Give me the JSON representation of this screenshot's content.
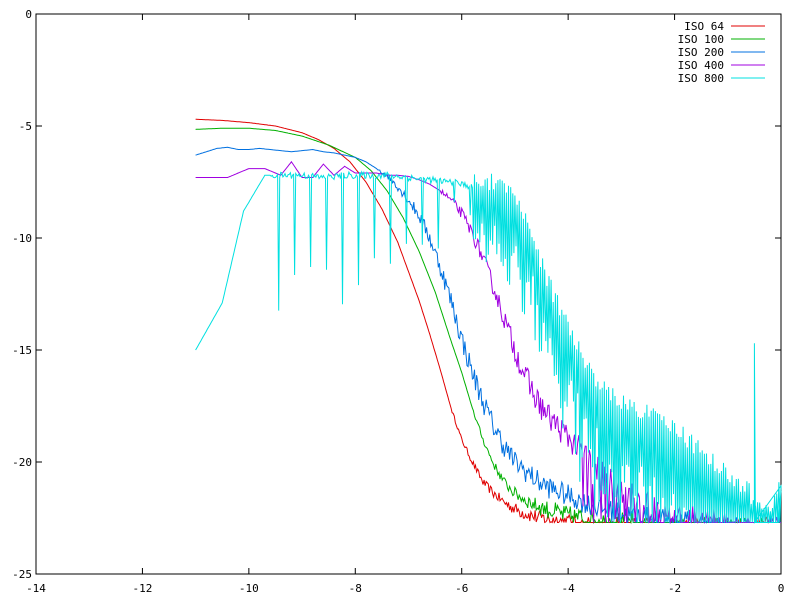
{
  "chart_data": {
    "type": "line",
    "title": "",
    "xlabel": "",
    "ylabel": "",
    "xlim": [
      -14,
      0
    ],
    "ylim": [
      -25,
      0
    ],
    "x_ticks": [
      -14,
      -12,
      -10,
      -8,
      -6,
      -4,
      -2,
      0
    ],
    "y_ticks": [
      0,
      -5,
      -10,
      -15,
      -20,
      -25
    ],
    "x_tick_labels": [
      "-14",
      "-12",
      "-10",
      "-8",
      "-6",
      "-4",
      "-2",
      "0"
    ],
    "y_tick_labels": [
      "0",
      "-5",
      "-10",
      "-15",
      "-20",
      "-25"
    ],
    "grid": false,
    "legend_position": "top-right",
    "floor_value": -22.7,
    "series": [
      {
        "name": "ISO 64",
        "color": "#e00000",
        "style": "smooth",
        "x": [
          -11,
          -10.5,
          -10,
          -9.5,
          -9,
          -8.7,
          -8.4,
          -8.1,
          -7.8,
          -7.5,
          -7.2,
          -7.0,
          -6.8,
          -6.6,
          -6.4,
          -6.2,
          -6.0,
          -5.8,
          -5.6,
          -5.4,
          -5.2,
          -5.0,
          -4.8,
          -4.6,
          -4.4,
          -4.2,
          -4.0,
          -3.8
        ],
        "y": [
          -4.7,
          -4.75,
          -4.85,
          -5.0,
          -5.3,
          -5.6,
          -6.0,
          -6.6,
          -7.5,
          -8.7,
          -10.2,
          -11.5,
          -12.8,
          -14.3,
          -15.9,
          -17.6,
          -19.0,
          -20.0,
          -20.9,
          -21.4,
          -21.8,
          -22.1,
          -22.3,
          -22.45,
          -22.55,
          -22.6,
          -22.65,
          -22.7
        ],
        "noise": 0.35,
        "noise_from": -6.2
      },
      {
        "name": "ISO 100",
        "color": "#00b000",
        "style": "smooth",
        "x": [
          -11,
          -10.5,
          -10,
          -9.5,
          -9,
          -8.5,
          -8.0,
          -7.7,
          -7.4,
          -7.1,
          -6.8,
          -6.5,
          -6.2,
          -6.0,
          -5.8,
          -5.6,
          -5.4,
          -5.2,
          -5.0,
          -4.8,
          -4.6,
          -4.3,
          -4.0,
          -3.6,
          -3.2,
          -2.8
        ],
        "y": [
          -5.15,
          -5.1,
          -5.1,
          -5.2,
          -5.45,
          -5.85,
          -6.4,
          -7.0,
          -7.9,
          -9.1,
          -10.6,
          -12.4,
          -14.6,
          -16.0,
          -17.6,
          -19.0,
          -20.1,
          -20.9,
          -21.4,
          -21.7,
          -21.95,
          -22.2,
          -22.4,
          -22.55,
          -22.65,
          -22.7
        ],
        "noise": 0.45,
        "noise_from": -5.8
      },
      {
        "name": "ISO 200",
        "color": "#0070e0",
        "style": "jagged",
        "x": [
          -11,
          -10.8,
          -10.6,
          -10.4,
          -10.2,
          -10.0,
          -9.8,
          -9.6,
          -9.4,
          -9.2,
          -9.0,
          -8.8,
          -8.6,
          -8.4,
          -8.2,
          -8.0,
          -7.8,
          -7.6,
          -7.4,
          -7.2,
          -7.0,
          -6.8,
          -6.6,
          -6.4,
          -6.2,
          -6.0,
          -5.8,
          -5.6,
          -5.4,
          -5.2,
          -5.0,
          -4.8,
          -4.6,
          -4.4,
          -4.2,
          -4.0,
          -3.8,
          -3.6,
          -3.4,
          -3.2,
          -3.0,
          -2.8,
          -2.5,
          -2.2,
          -1.9,
          -1.6,
          -1.3
        ],
        "y": [
          -6.3,
          -6.15,
          -6.0,
          -5.95,
          -6.05,
          -6.05,
          -6.0,
          -6.05,
          -6.1,
          -6.15,
          -6.1,
          -6.05,
          -6.15,
          -6.2,
          -6.3,
          -6.4,
          -6.6,
          -6.9,
          -7.2,
          -7.7,
          -8.3,
          -9.0,
          -10.0,
          -11.3,
          -12.8,
          -14.5,
          -16.0,
          -17.3,
          -18.4,
          -19.3,
          -20.0,
          -20.4,
          -20.8,
          -21.1,
          -21.3,
          -21.5,
          -21.7,
          -21.9,
          -22.05,
          -22.2,
          -22.3,
          -22.4,
          -22.5,
          -22.6,
          -22.65,
          -22.7,
          -22.7
        ],
        "noise": 0.5,
        "noise_from": -7.6
      },
      {
        "name": "ISO 400",
        "color": "#a000e0",
        "style": "jagged",
        "x": [
          -11,
          -10.4,
          -10.0,
          -9.7,
          -9.4,
          -9.2,
          -9.0,
          -8.8,
          -8.6,
          -8.4,
          -8.2,
          -8.0,
          -7.8,
          -7.6,
          -7.4,
          -7.2,
          -7.0,
          -6.8,
          -6.6,
          -6.4,
          -6.2,
          -6.0,
          -5.8,
          -5.6,
          -5.4,
          -5.2,
          -5.0,
          -4.8,
          -4.6,
          -4.4,
          -4.2,
          -4.0,
          -3.8,
          -3.6,
          -3.4,
          -3.2,
          -3.0,
          -2.8,
          -2.6,
          -2.4,
          -2.2,
          -2.0,
          -1.8,
          -1.6,
          -1.4,
          -1.2,
          -1.0
        ],
        "y": [
          -7.3,
          -7.3,
          -6.9,
          -6.9,
          -7.2,
          -6.6,
          -7.3,
          -7.3,
          -6.7,
          -7.2,
          -6.8,
          -7.1,
          -7.1,
          -7.1,
          -7.2,
          -7.2,
          -7.25,
          -7.4,
          -7.6,
          -7.9,
          -8.3,
          -8.9,
          -9.8,
          -10.9,
          -12.2,
          -13.6,
          -15.0,
          -16.2,
          -17.2,
          -17.9,
          -18.4,
          -18.9,
          -19.4,
          -19.9,
          -20.4,
          -20.8,
          -21.2,
          -21.5,
          -21.8,
          -22.0,
          -22.2,
          -22.35,
          -22.45,
          -22.55,
          -22.6,
          -22.65,
          -22.7
        ],
        "noise": 0.6,
        "noise_from": -6.4,
        "drop_from": -3.8,
        "drop_prob": 0.35
      },
      {
        "name": "ISO 800",
        "color": "#00e0e0",
        "style": "spiky",
        "x": [
          -11,
          -10.5,
          -10.1,
          -9.7,
          -9.4,
          -9.0,
          -8.6,
          -8.2,
          -7.8,
          -7.4,
          -7.0,
          -6.6,
          -6.2,
          -6.0,
          -5.8,
          -5.6,
          -5.4,
          -5.2,
          -5.0,
          -4.8,
          -4.6,
          -4.4,
          -4.2,
          -4.0,
          -3.8,
          -3.6,
          -3.4,
          -3.2,
          -3.0,
          -2.8,
          -2.6,
          -2.4,
          -2.2,
          -2.0,
          -1.8,
          -1.6,
          -1.4,
          -1.2,
          -1.0,
          -0.8,
          -0.6,
          -0.5,
          -0.4,
          -0.2,
          0
        ],
        "y": [
          -15.0,
          -12.9,
          -8.8,
          -7.2,
          -7.2,
          -7.2,
          -7.3,
          -7.2,
          -7.2,
          -7.2,
          -7.3,
          -7.4,
          -7.5,
          -7.6,
          -7.7,
          -7.8,
          -7.9,
          -8.1,
          -8.6,
          -9.5,
          -10.8,
          -12.2,
          -13.3,
          -14.4,
          -15.4,
          -16.3,
          -16.9,
          -17.4,
          -17.8,
          -17.9,
          -18.1,
          -18.2,
          -18.5,
          -18.9,
          -19.3,
          -19.7,
          -20.1,
          -20.5,
          -20.9,
          -21.3,
          -21.7,
          -22.3,
          -22.6,
          -22.6,
          -21.3
        ],
        "noise": 0.8,
        "noise_from": -9.6,
        "spike_every": 0.15,
        "spike_from": -9.6,
        "spike_to": -5.8,
        "dense_from": -5.8
      }
    ]
  }
}
